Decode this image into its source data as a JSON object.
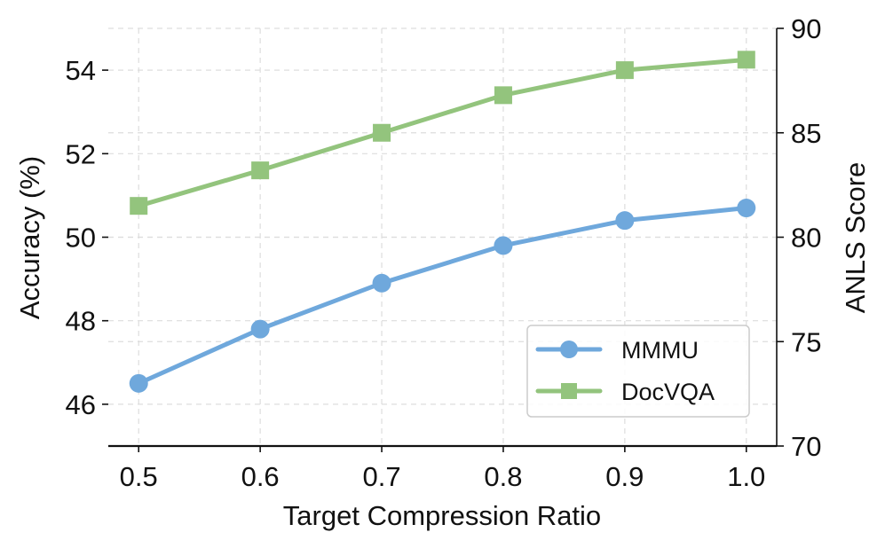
{
  "chart_data": {
    "type": "line",
    "title": "",
    "xlabel": "Target Compression Ratio",
    "ylabel": "Accuracy (%)",
    "y2label": "ANLS Score",
    "x": [
      0.5,
      0.6,
      0.7,
      0.8,
      0.9,
      1.0
    ],
    "x_tick_labels": [
      "0.5",
      "0.6",
      "0.7",
      "0.8",
      "0.9",
      "1.0"
    ],
    "xlim": [
      0.475,
      1.025
    ],
    "ylim": [
      45,
      55
    ],
    "y_ticks": [
      46,
      48,
      50,
      52,
      54
    ],
    "y_tick_labels": [
      "46",
      "48",
      "50",
      "52",
      "54"
    ],
    "y2lim": [
      70,
      90
    ],
    "y2_ticks": [
      70,
      75,
      80,
      85,
      90
    ],
    "y2_tick_labels": [
      "70",
      "75",
      "80",
      "85",
      "90"
    ],
    "grid": true,
    "legend_position": "bottom-right",
    "series": [
      {
        "name": "MMMU",
        "axis": "left",
        "marker": "circle",
        "color": "#6fa8dc",
        "values": [
          46.5,
          47.8,
          48.9,
          49.8,
          50.4,
          50.7
        ]
      },
      {
        "name": "DocVQA",
        "axis": "right",
        "marker": "square",
        "color": "#93c47d",
        "values": [
          81.5,
          83.2,
          85.0,
          86.8,
          88.0,
          88.5
        ]
      }
    ]
  }
}
